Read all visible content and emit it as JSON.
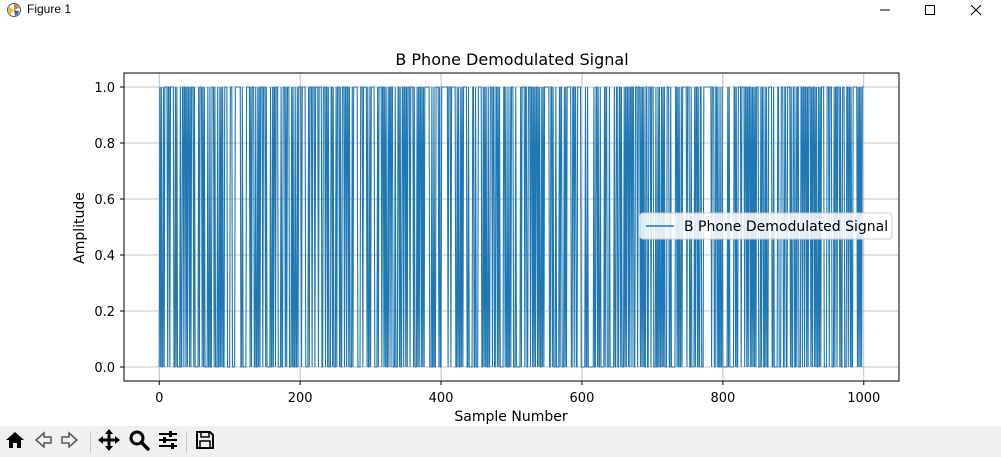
{
  "window": {
    "title": "Figure 1",
    "app_icon": "matplotlib-icon",
    "controls": [
      "minimize-icon",
      "maximize-icon",
      "close-icon"
    ]
  },
  "toolbar": {
    "buttons": [
      "home-icon",
      "back-icon",
      "forward-icon",
      "pan-icon",
      "zoom-icon",
      "configure-subplots-icon",
      "save-icon"
    ]
  },
  "chart_data": {
    "type": "line",
    "title": "B Phone Demodulated Signal",
    "xlabel": "Sample Number",
    "ylabel": "Amplitude",
    "xlim": [
      -50,
      1050
    ],
    "ylim": [
      -0.05,
      1.05
    ],
    "xticks": [
      0,
      200,
      400,
      600,
      800,
      1000
    ],
    "xtick_labels": [
      "0",
      "200",
      "400",
      "600",
      "800",
      "1000"
    ],
    "yticks": [
      0.0,
      0.2,
      0.4,
      0.6,
      0.8,
      1.0
    ],
    "ytick_labels": [
      "0.0",
      "0.2",
      "0.4",
      "0.6",
      "0.8",
      "1.0"
    ],
    "grid": true,
    "legend_position": "center-right",
    "series": [
      {
        "name": "B Phone Demodulated Signal",
        "color": "#1f77b4",
        "x_start": 0,
        "x_end": 1000,
        "step": 1,
        "value_set": [
          0,
          1
        ],
        "pattern": "random binary sequence"
      }
    ]
  }
}
